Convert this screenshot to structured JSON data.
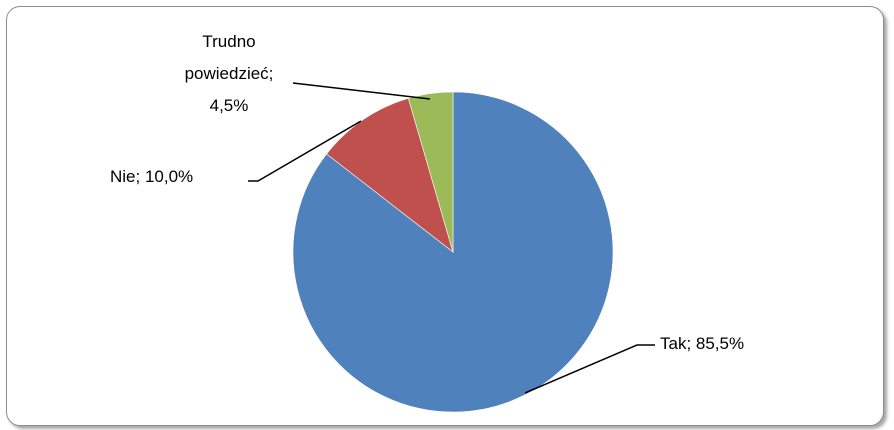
{
  "chart_data": {
    "type": "pie",
    "title": "",
    "slices": [
      {
        "label": "Tak",
        "value": 85.5,
        "value_text": "85,5%",
        "color": "#4f81bd"
      },
      {
        "label": "Nie",
        "value": 10.0,
        "value_text": "10,0%",
        "color": "#c0504d"
      },
      {
        "label": "Trudno powiedzieć",
        "value": 4.5,
        "value_text": "4,5%",
        "color": "#9bbb59"
      }
    ],
    "data_labels": {
      "tak": "Tak; 85,5%",
      "nie": "Nie; 10,0%",
      "trudno_line1": "Trudno",
      "trudno_line2": "powiedzieć;",
      "trudno_line3": "4,5%"
    },
    "start_angle": "12 o'clock",
    "direction": "clockwise",
    "legend": "none"
  }
}
